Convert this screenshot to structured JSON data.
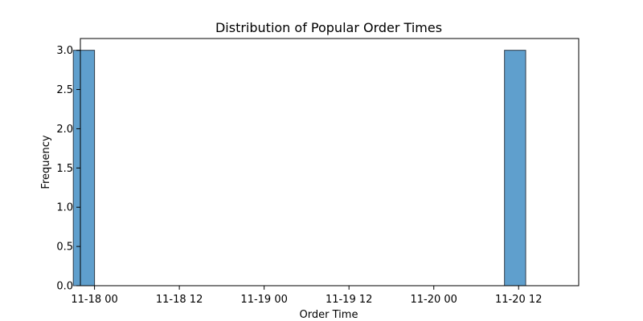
{
  "chart_data": {
    "type": "bar",
    "title": "Distribution of Popular Order Times",
    "xlabel": "Order Time",
    "ylabel": "Frequency",
    "x_tick_labels": [
      "11-18 00",
      "11-18 12",
      "11-19 00",
      "11-19 12",
      "11-20 00",
      "11-20 12"
    ],
    "y_tick_labels": [
      "0.0",
      "0.5",
      "1.0",
      "1.5",
      "2.0",
      "2.5",
      "3.0"
    ],
    "x_ticks_hours": [
      0,
      12,
      24,
      36,
      48,
      60
    ],
    "xlim_hours": [
      -2.0,
      68.5
    ],
    "y_ticks": [
      0,
      0.5,
      1.0,
      1.5,
      2.0,
      2.5,
      3.0
    ],
    "ylim": [
      0,
      3.15
    ],
    "bars": [
      {
        "x_start": "11-17 21:00",
        "x_end": "11-18 00:00",
        "x_start_hours": -3,
        "x_end_hours": 0,
        "value": 3
      },
      {
        "x_start": "11-20 10:00",
        "x_end": "11-20 13:00",
        "x_start_hours": 58,
        "x_end_hours": 61,
        "value": 3
      }
    ],
    "grid": false,
    "colors": {
      "bar_fill": "#5f9fcd",
      "bar_edge": "#2f3b48"
    }
  }
}
